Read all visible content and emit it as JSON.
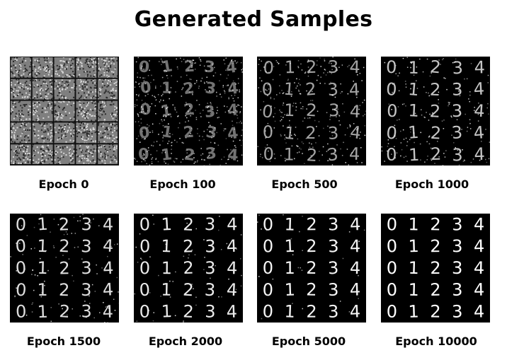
{
  "title": "Generated Samples",
  "panels": [
    {
      "label": "Epoch 0",
      "quality": 0
    },
    {
      "label": "Epoch 100",
      "quality": 0.15
    },
    {
      "label": "Epoch 500",
      "quality": 0.45
    },
    {
      "label": "Epoch 1000",
      "quality": 0.65
    },
    {
      "label": "Epoch 1500",
      "quality": 0.8
    },
    {
      "label": "Epoch 2000",
      "quality": 0.88
    },
    {
      "label": "Epoch 5000",
      "quality": 0.94
    },
    {
      "label": "Epoch 10000",
      "quality": 1
    }
  ],
  "grid_rows": 5,
  "grid_cols": 5,
  "digits": [
    "0",
    "1",
    "2",
    "3",
    "4"
  ],
  "colors": {
    "panel_bg": "#000000",
    "digit": "#ffffff",
    "noise_bg": "#7f7f7f"
  }
}
